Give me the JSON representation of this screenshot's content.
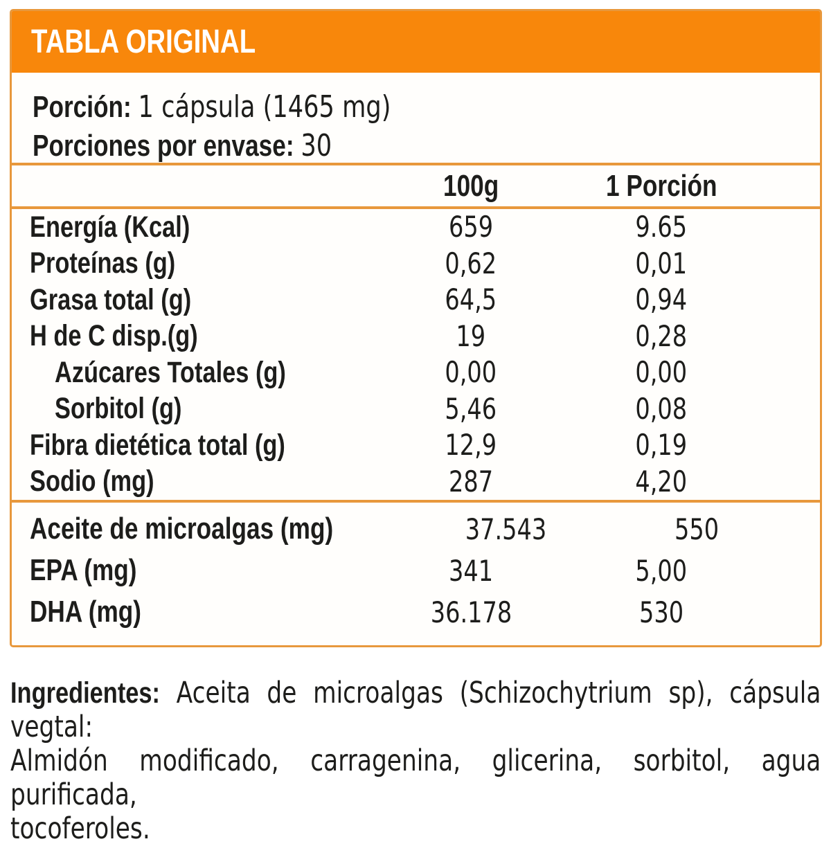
{
  "header": {
    "title": "TABLA ORIGINAL"
  },
  "serving": {
    "porcion_label": "Porción:",
    "porcion_value": "1 cápsula (1465 mg)",
    "porciones_label": "Porciones por envase:",
    "porciones_value": "30"
  },
  "columns": {
    "per100": "100g",
    "portion": "1 Porción"
  },
  "nutrients": [
    {
      "label": "Energía (Kcal)",
      "per100": "659",
      "portion": "9.65"
    },
    {
      "label": "Proteínas (g)",
      "per100": "0,62",
      "portion": "0,01"
    },
    {
      "label": "Grasa total (g)",
      "per100": "64,5",
      "portion": "0,94"
    },
    {
      "label": "H de C disp.(g)",
      "per100": "19",
      "portion": "0,28"
    },
    {
      "label": "Azúcares Totales (g)",
      "per100": "0,00",
      "portion": "0,00"
    },
    {
      "label": "Sorbitol (g)",
      "per100": "5,46",
      "portion": "0,08"
    },
    {
      "label": "Fibra dietética total (g)",
      "per100": "12,9",
      "portion": "0,19"
    },
    {
      "label": "Sodio (mg)",
      "per100": "287",
      "portion": "4,20"
    }
  ],
  "actives": [
    {
      "label": "Aceite de microalgas (mg)",
      "per100": "37.543",
      "portion": "550"
    },
    {
      "label": "EPA (mg)",
      "per100": "341",
      "portion": "5,00"
    },
    {
      "label": "DHA (mg)",
      "per100": "36.178",
      "portion": "530"
    }
  ],
  "ingredients": {
    "label": "Ingredientes:",
    "lines": [
      "Aceita de microalgas (Schizochytrium sp), cápsula vegtal:",
      "Almidón modificado, carragenina, glicerina, sorbitol, agua purificada,",
      "tocoferoles."
    ]
  },
  "colors": {
    "band_orange": "#F8870B",
    "line_amber": "#E8983C",
    "text_black": "#1D1D1B",
    "title_white": "#FFFFFF"
  }
}
